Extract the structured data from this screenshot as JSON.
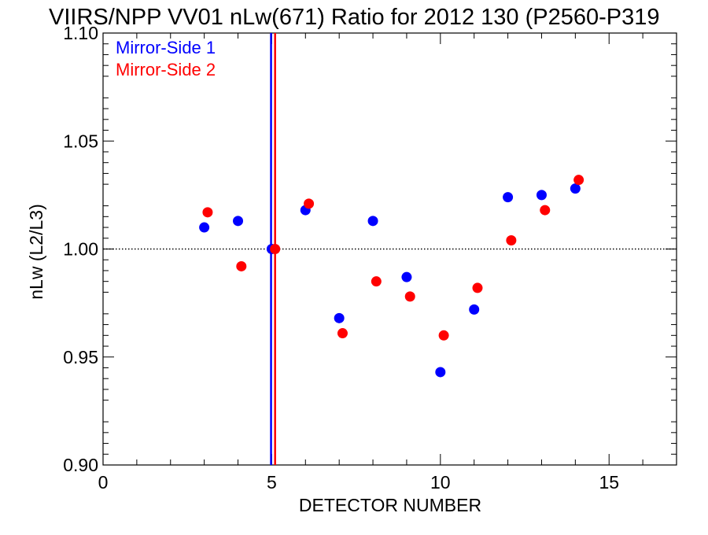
{
  "chart_data": {
    "type": "scatter",
    "title": "VIIRS/NPP VV01 nLw(671) Ratio for 2012 130 (P2560-P319",
    "xlabel": "DETECTOR NUMBER",
    "ylabel": "nLw (L2/L3)",
    "xlim": [
      0,
      17
    ],
    "ylim": [
      0.9,
      1.1
    ],
    "xticks": [
      0,
      5,
      10,
      15
    ],
    "xtick_labels": [
      "0",
      "5",
      "10",
      "15"
    ],
    "yticks": [
      0.9,
      0.95,
      1.0,
      1.05,
      1.1
    ],
    "ytick_labels": [
      "0.90",
      "0.95",
      "1.00",
      "1.05",
      "1.10"
    ],
    "reference_line_y": 1.0,
    "legend_position": "top-left",
    "series": [
      {
        "name": "Mirror-Side 1",
        "color": "#0000ff",
        "x": [
          3,
          4,
          5,
          6,
          7,
          8,
          9,
          10,
          11,
          12,
          13,
          14
        ],
        "y": [
          1.01,
          1.013,
          1.0,
          1.018,
          0.968,
          1.013,
          0.987,
          0.943,
          0.972,
          1.024,
          1.025,
          1.028
        ],
        "vertical_line_x": 4.98
      },
      {
        "name": "Mirror-Side 2",
        "color": "#ff0000",
        "x": [
          3.1,
          4.1,
          5.1,
          6.1,
          7.1,
          8.1,
          9.1,
          10.1,
          11.1,
          12.1,
          13.1,
          14.1
        ],
        "y": [
          1.017,
          0.992,
          1.0,
          1.021,
          0.961,
          0.985,
          0.978,
          0.96,
          0.982,
          1.004,
          1.018,
          1.032
        ],
        "vertical_line_x": 5.1
      }
    ]
  }
}
